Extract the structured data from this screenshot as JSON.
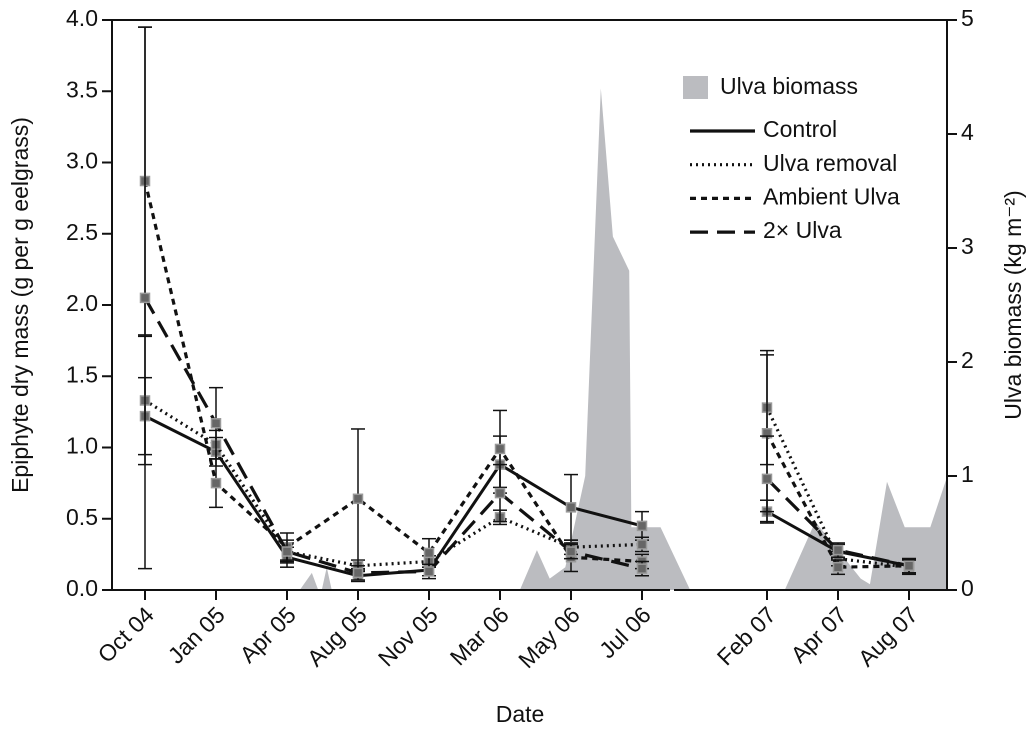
{
  "chart_data": {
    "type": "line",
    "x_label": "Date",
    "y_label": "Epiphyte dry mass (g per g eelgrass)",
    "y2_label": "Ulva biomass (kg m⁻²)",
    "categories": [
      "Oct 04",
      "Jan 05",
      "Apr 05",
      "Aug 05",
      "Nov 05",
      "Mar 06",
      "May 06",
      "Jul 06",
      null,
      "Feb 07",
      "Apr 07",
      "Aug 07"
    ],
    "ylim": [
      0,
      4
    ],
    "yticks": [
      {
        "value": 0,
        "label": "0.0"
      },
      {
        "value": 0.5,
        "label": "0.5"
      },
      {
        "value": 1,
        "label": "1.0"
      },
      {
        "value": 1.5,
        "label": "1.5"
      },
      {
        "value": 2,
        "label": "2.0"
      },
      {
        "value": 2.5,
        "label": "2.5"
      },
      {
        "value": 3,
        "label": "3.0"
      },
      {
        "value": 3.5,
        "label": "3.5"
      },
      {
        "value": 4,
        "label": "4.0"
      }
    ],
    "y2lim": [
      0,
      5
    ],
    "y2ticks": [
      0,
      1,
      2,
      3,
      4,
      5
    ],
    "legend": "upper right",
    "area": {
      "name": "Ulva biomass",
      "color": "#bbbcc0",
      "axis": "y2",
      "x": [
        -0.46,
        2.18,
        2.35,
        2.44,
        2.49,
        2.56,
        2.63,
        5.28,
        5.52,
        5.7,
        5.92,
        6.2,
        6.42,
        6.59,
        6.82,
        6.85,
        7.31,
        7.78,
        9.25,
        9.68,
        10.32,
        10.45,
        10.69,
        10.94,
        11.3,
        11.54
      ],
      "values": [
        0,
        0,
        0.15,
        0,
        0,
        0.2,
        0,
        0,
        0.35,
        0.1,
        0.2,
        1.0,
        4.4,
        3.1,
        2.8,
        0.55,
        0.55,
        0,
        0,
        0.6,
        0.1,
        0.05,
        0.95,
        0.55,
        0.55,
        1.0
      ]
    },
    "series": [
      {
        "name": "Control",
        "color": "#111111",
        "style": "solid",
        "values": [
          1.22,
          0.97,
          0.23,
          0.1,
          0.14,
          0.88,
          0.58,
          0.45,
          null,
          0.55,
          0.27,
          0.17
        ],
        "errors": [
          0.27,
          0.1,
          0.07,
          0.04,
          0.04,
          0.2,
          0.23,
          0.1,
          null,
          0.08,
          0.05,
          0.05
        ]
      },
      {
        "name": "Ulva removal",
        "color": "#111111",
        "style": "dotted",
        "values": [
          1.33,
          1.02,
          0.27,
          0.17,
          0.2,
          0.51,
          0.3,
          0.32,
          null,
          1.28,
          0.22,
          0.16
        ],
        "errors": [
          0.45,
          0.1,
          0.06,
          0.04,
          0.04,
          0.05,
          0.05,
          0.05,
          null,
          0.4,
          0.05,
          0.05
        ]
      },
      {
        "name": "Ambient Ulva",
        "color": "#111111",
        "style": "dashed",
        "values": [
          2.87,
          0.75,
          0.3,
          0.64,
          0.26,
          0.99,
          0.23,
          0.2,
          null,
          1.1,
          0.16,
          0.17
        ],
        "errors": [
          1.08,
          0.17,
          0.1,
          0.49,
          0.1,
          0.27,
          0.1,
          0.05,
          null,
          0.55,
          0.05,
          0.05
        ]
      },
      {
        "name": " 2× Ulva",
        "color": "#111111",
        "style": "longdash",
        "values": [
          2.05,
          1.17,
          0.27,
          0.12,
          0.13,
          0.68,
          0.27,
          0.15,
          null,
          0.78,
          0.28,
          0.17
        ],
        "errors": [
          1.9,
          0.25,
          0.08,
          0.05,
          0.05,
          0.2,
          0.05,
          0.05,
          null,
          0.3,
          0.05,
          0.05
        ]
      }
    ]
  }
}
